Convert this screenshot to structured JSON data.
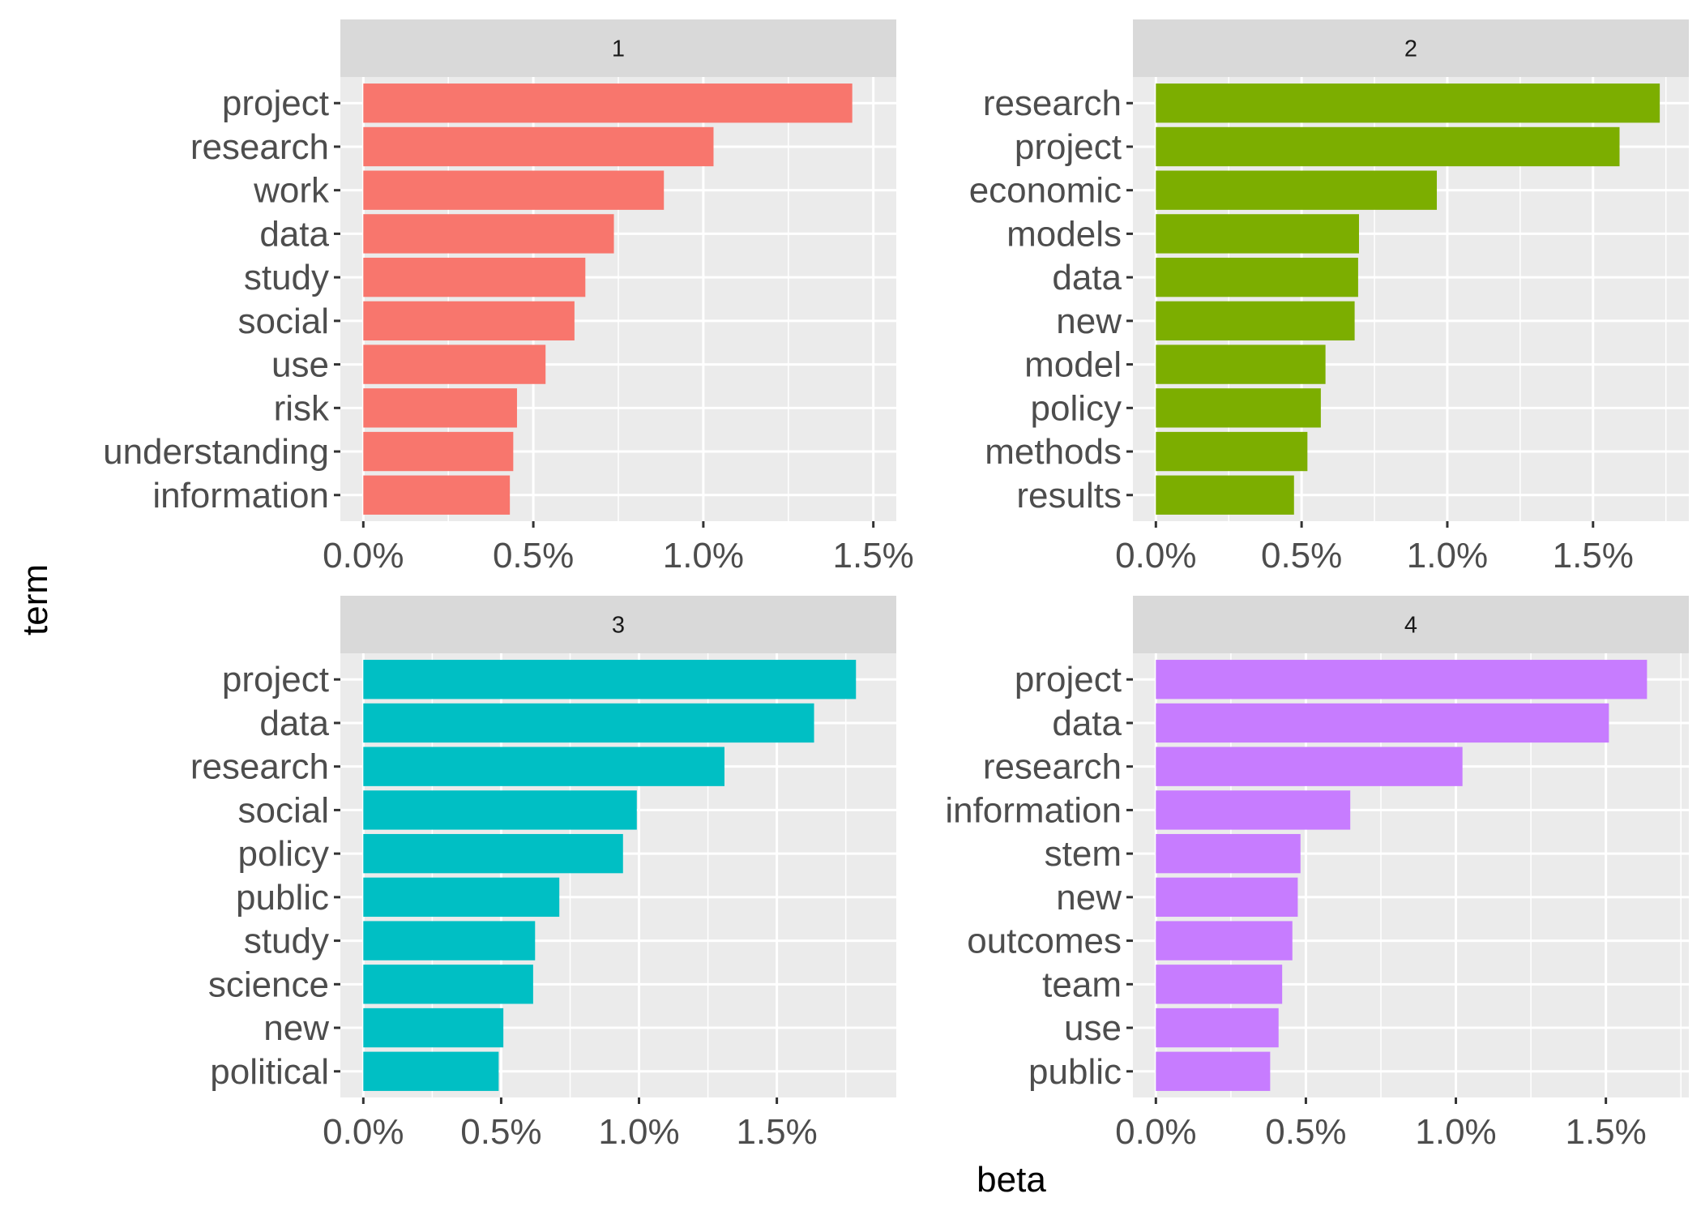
{
  "chart_data": {
    "type": "bar",
    "orientation": "horizontal",
    "xlabel": "beta",
    "ylabel": "term",
    "grid": true,
    "legend": "none",
    "facets": [
      {
        "label": "1",
        "color": "#F8766D",
        "xlim": [
          0,
          0.015
        ],
        "ticks": [
          0,
          0.005,
          0.01,
          0.015
        ],
        "tick_labels": [
          "0.0%",
          "0.5%",
          "1.0%",
          "1.5%"
        ],
        "terms": [
          "project",
          "research",
          "work",
          "data",
          "study",
          "social",
          "use",
          "risk",
          "understanding",
          "information"
        ],
        "values": [
          0.01438,
          0.0103,
          0.00884,
          0.00737,
          0.00653,
          0.00621,
          0.00536,
          0.00452,
          0.00441,
          0.00431
        ]
      },
      {
        "label": "2",
        "color": "#7CAE00",
        "xlim": [
          0,
          0.0175
        ],
        "ticks": [
          0,
          0.005,
          0.01,
          0.015
        ],
        "tick_labels": [
          "0.0%",
          "0.5%",
          "1.0%",
          "1.5%"
        ],
        "terms": [
          "research",
          "project",
          "economic",
          "models",
          "data",
          "new",
          "model",
          "policy",
          "methods",
          "results"
        ],
        "values": [
          0.01729,
          0.01591,
          0.00964,
          0.00697,
          0.00694,
          0.00682,
          0.00582,
          0.00566,
          0.0052,
          0.00474
        ]
      },
      {
        "label": "3",
        "color": "#00BFC4",
        "xlim": [
          0,
          0.0185
        ],
        "ticks": [
          0,
          0.005,
          0.01,
          0.015
        ],
        "tick_labels": [
          "0.0%",
          "0.5%",
          "1.0%",
          "1.5%"
        ],
        "terms": [
          "project",
          "data",
          "research",
          "social",
          "policy",
          "public",
          "study",
          "science",
          "new",
          "political"
        ],
        "values": [
          0.01787,
          0.01635,
          0.0131,
          0.00992,
          0.00942,
          0.00711,
          0.00623,
          0.00616,
          0.00508,
          0.00491
        ]
      },
      {
        "label": "4",
        "color": "#C77CFF",
        "xlim": [
          0,
          0.017
        ],
        "ticks": [
          0,
          0.005,
          0.01,
          0.015
        ],
        "tick_labels": [
          "0.0%",
          "0.5%",
          "1.0%",
          "1.5%"
        ],
        "terms": [
          "project",
          "data",
          "research",
          "information",
          "stem",
          "new",
          "outcomes",
          "team",
          "use",
          "public"
        ],
        "values": [
          0.01637,
          0.0151,
          0.01022,
          0.00648,
          0.00482,
          0.00473,
          0.00455,
          0.00421,
          0.00409,
          0.00381
        ]
      }
    ]
  }
}
